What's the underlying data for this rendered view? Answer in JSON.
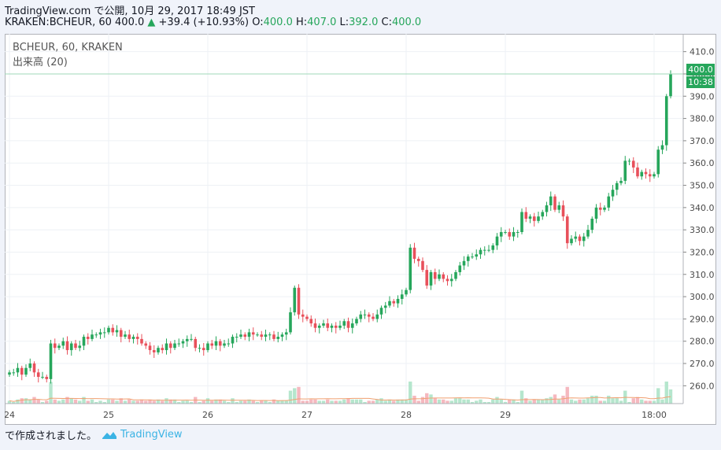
{
  "header": {
    "published": "TradingView.com で公開, 10月 29, 2017 18:49 JST",
    "symbol": "KRAKEN:BCHEUR, 60",
    "last": "400.0",
    "change_arrow": "▲",
    "change": "+39.4 (+10.93%)",
    "o_label": "O:",
    "o": "400.0",
    "h_label": "H:",
    "h": "407.0",
    "l_label": "L:",
    "l": "392.0",
    "c_label": "C:",
    "c": "400.0"
  },
  "legend": {
    "title": "BCHEUR, 60, KRAKEN",
    "volume": "出来高 (20)"
  },
  "footer": {
    "made_with": "で作成されました。",
    "brand": "TradingView"
  },
  "colors": {
    "up": "#26a65b",
    "down": "#e8505b",
    "vol_up": "#b5e6cd",
    "vol_down": "#f5b8bf",
    "ma": "#f0a070",
    "price_line": "#9fd8b8"
  },
  "chart_data": {
    "type": "candlestick",
    "interval": "60",
    "y_axis": {
      "range": [
        252,
        418
      ],
      "ticks": [
        260,
        270,
        280,
        290,
        300,
        310,
        320,
        330,
        340,
        350,
        360,
        370,
        380,
        390,
        400,
        410
      ],
      "tick_labels": [
        "260.0",
        "270.0",
        "280.0",
        "290.0",
        "300.0",
        "310.0",
        "320.0",
        "330.0",
        "340.0",
        "350.0",
        "360.0",
        "370.0",
        "380.0",
        "390.0",
        "400.0",
        "410.0"
      ]
    },
    "x_axis": {
      "ticks": [
        "24",
        "25",
        "26",
        "27",
        "28",
        "29",
        "18:00"
      ]
    },
    "last_price_label": "400.0",
    "countdown_label": "10:38",
    "closes": [
      266,
      266,
      268,
      265,
      268,
      270,
      266,
      264,
      264,
      263,
      279,
      277,
      278,
      280,
      276,
      279,
      277,
      278,
      282,
      281,
      283,
      283,
      284,
      284,
      286,
      284,
      285,
      282,
      283,
      281,
      282,
      281,
      279,
      278,
      276,
      275,
      277,
      276,
      279,
      277,
      279,
      279,
      280,
      281,
      281,
      277,
      277,
      276,
      279,
      278,
      280,
      278,
      279,
      279,
      282,
      282,
      283,
      282,
      284,
      283,
      283,
      282,
      283,
      283,
      281,
      282,
      283,
      284,
      293,
      304,
      292,
      291,
      290,
      288,
      286,
      287,
      288,
      286,
      287,
      286,
      287,
      289,
      286,
      288,
      290,
      292,
      292,
      291,
      290,
      292,
      295,
      296,
      298,
      297,
      299,
      301,
      303,
      322,
      317,
      316,
      312,
      305,
      311,
      308,
      310,
      308,
      307,
      308,
      311,
      314,
      316,
      318,
      318,
      319,
      321,
      321,
      321,
      323,
      327,
      329,
      329,
      327,
      329,
      329,
      338,
      335,
      336,
      334,
      336,
      338,
      341,
      345,
      339,
      341,
      336,
      324,
      326,
      327,
      325,
      327,
      330,
      335,
      340,
      339,
      340,
      345,
      348,
      351,
      352,
      361,
      361,
      358,
      354,
      356,
      355,
      354,
      355,
      366,
      368,
      390,
      400
    ],
    "x_tick_positions": [
      0,
      24,
      48,
      72,
      96,
      120,
      156
    ],
    "volume_avg_trend": "low, rising after 28"
  }
}
